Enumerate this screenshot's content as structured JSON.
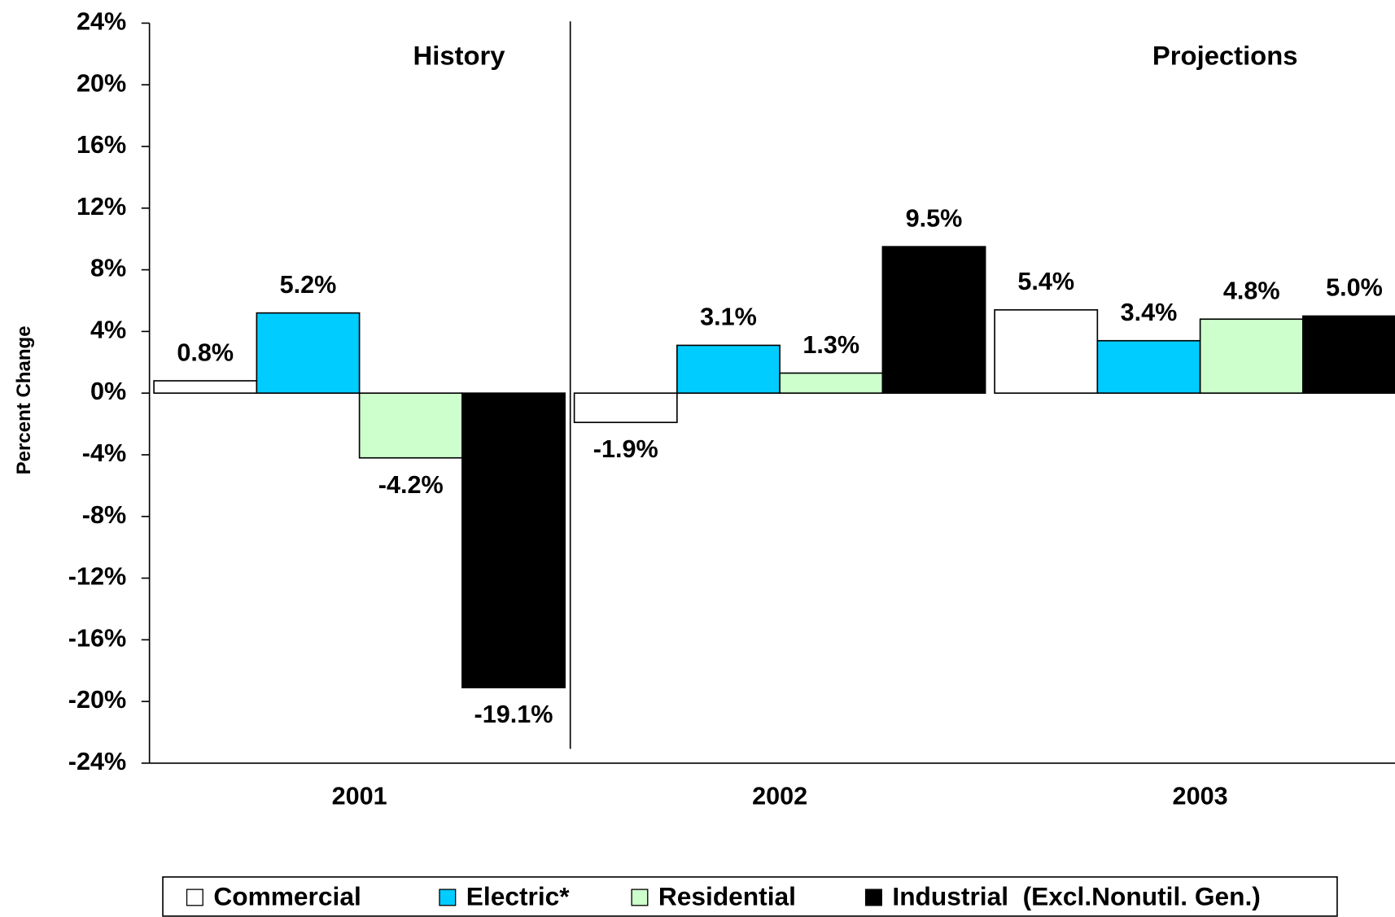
{
  "chart_data": {
    "type": "bar",
    "y_axis_label": "Percent Change",
    "annotations": [
      "History",
      "Projections"
    ],
    "categories": [
      "2001",
      "2002",
      "2003"
    ],
    "series": [
      {
        "name": "Commercial",
        "color": "#ffffff",
        "values": [
          0.8,
          -1.9,
          5.4
        ],
        "value_labels": [
          "0.8%",
          "-1.9%",
          "5.4%"
        ]
      },
      {
        "name": "Electric*",
        "color": "#00ccff",
        "values": [
          5.2,
          3.1,
          3.4
        ],
        "value_labels": [
          "5.2%",
          "3.1%",
          "3.4%"
        ]
      },
      {
        "name": "Residential",
        "color": "#ccffcc",
        "values": [
          -4.2,
          1.3,
          4.8
        ],
        "value_labels": [
          "-4.2%",
          "1.3%",
          "4.8%"
        ]
      },
      {
        "name": "Industrial  (Excl.Nonutil. Gen.)",
        "color": "#000000",
        "values": [
          -19.1,
          9.5,
          5.0
        ],
        "value_labels": [
          "-19.1%",
          "9.5%",
          "5.0%"
        ]
      }
    ],
    "ylim": [
      -24,
      24
    ],
    "yticks": [
      {
        "value": -24,
        "label": "-24%"
      },
      {
        "value": -20,
        "label": "-20%"
      },
      {
        "value": -16,
        "label": "-16%"
      },
      {
        "value": -12,
        "label": "-12%"
      },
      {
        "value": -8,
        "label": "-8%"
      },
      {
        "value": -4,
        "label": "-4%"
      },
      {
        "value": 0,
        "label": "0%"
      },
      {
        "value": 4,
        "label": "4%"
      },
      {
        "value": 8,
        "label": "8%"
      },
      {
        "value": 12,
        "label": "12%"
      },
      {
        "value": 16,
        "label": "16%"
      },
      {
        "value": 20,
        "label": "20%"
      },
      {
        "value": 24,
        "label": "24%"
      }
    ],
    "legend": "bottom"
  }
}
